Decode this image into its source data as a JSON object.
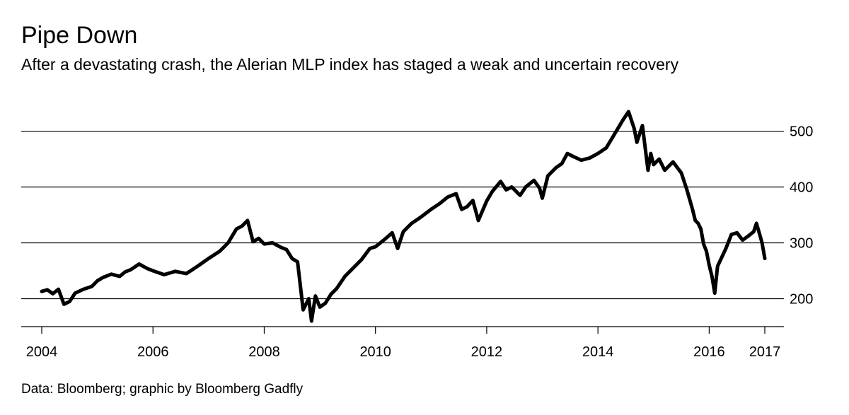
{
  "chart_data": {
    "type": "line",
    "title": "Pipe Down",
    "subtitle": "After a devastating crash, the Alerian MLP index has staged a weak and uncertain recovery",
    "source": "Data: Bloomberg; graphic by Bloomberg Gadfly",
    "xlabel": "",
    "ylabel": "",
    "xlim": [
      2004.0,
      2017.0
    ],
    "ylim": [
      150,
      545
    ],
    "x_ticks": [
      2004,
      2006,
      2008,
      2010,
      2012,
      2014,
      2016,
      2017
    ],
    "x_tick_labels": [
      "2004",
      "2006",
      "2008",
      "2010",
      "2012",
      "2014",
      "2016",
      "2017"
    ],
    "y_ticks": [
      200,
      300,
      400,
      500
    ],
    "y_tick_labels": [
      "200",
      "300",
      "400",
      "500"
    ],
    "grid": "horizontal",
    "series": [
      {
        "name": "Alerian MLP index",
        "color": "#000000",
        "x": [
          2004.0,
          2004.1,
          2004.2,
          2004.3,
          2004.4,
          2004.5,
          2004.6,
          2004.75,
          2004.9,
          2005.0,
          2005.1,
          2005.25,
          2005.4,
          2005.5,
          2005.6,
          2005.75,
          2005.9,
          2006.0,
          2006.2,
          2006.4,
          2006.6,
          2006.8,
          2007.0,
          2007.2,
          2007.35,
          2007.5,
          2007.6,
          2007.7,
          2007.8,
          2007.9,
          2008.0,
          2008.15,
          2008.3,
          2008.4,
          2008.5,
          2008.6,
          2008.7,
          2008.8,
          2008.85,
          2008.92,
          2009.0,
          2009.1,
          2009.2,
          2009.3,
          2009.45,
          2009.6,
          2009.75,
          2009.9,
          2010.0,
          2010.15,
          2010.3,
          2010.4,
          2010.5,
          2010.65,
          2010.8,
          2011.0,
          2011.15,
          2011.3,
          2011.45,
          2011.55,
          2011.65,
          2011.75,
          2011.85,
          2012.0,
          2012.1,
          2012.25,
          2012.35,
          2012.45,
          2012.6,
          2012.7,
          2012.85,
          2012.95,
          2013.0,
          2013.1,
          2013.25,
          2013.35,
          2013.45,
          2013.55,
          2013.7,
          2013.85,
          2014.0,
          2014.15,
          2014.3,
          2014.45,
          2014.55,
          2014.65,
          2014.7,
          2014.8,
          2014.9,
          2014.95,
          2015.0,
          2015.1,
          2015.2,
          2015.35,
          2015.5,
          2015.6,
          2015.7,
          2015.75,
          2015.8,
          2015.85,
          2015.9,
          2015.95,
          2016.0,
          2016.05,
          2016.1,
          2016.15,
          2016.3,
          2016.4,
          2016.5,
          2016.6,
          2016.7,
          2016.8,
          2016.85,
          2016.9,
          2016.95,
          2017.0
        ],
        "values": [
          213,
          216,
          209,
          217,
          190,
          195,
          210,
          217,
          222,
          232,
          238,
          244,
          240,
          248,
          252,
          262,
          254,
          250,
          243,
          249,
          245,
          258,
          272,
          285,
          300,
          325,
          330,
          340,
          302,
          308,
          298,
          300,
          292,
          288,
          272,
          266,
          180,
          200,
          160,
          205,
          185,
          192,
          208,
          218,
          240,
          255,
          270,
          290,
          293,
          305,
          318,
          290,
          320,
          335,
          345,
          360,
          370,
          382,
          388,
          360,
          365,
          376,
          340,
          375,
          392,
          410,
          395,
          400,
          385,
          400,
          412,
          398,
          380,
          420,
          435,
          442,
          460,
          455,
          448,
          452,
          460,
          470,
          495,
          520,
          535,
          505,
          480,
          510,
          430,
          460,
          440,
          450,
          430,
          445,
          425,
          395,
          360,
          340,
          335,
          325,
          298,
          285,
          260,
          240,
          210,
          258,
          290,
          315,
          318,
          305,
          312,
          320,
          335,
          318,
          300,
          272
        ]
      }
    ]
  }
}
